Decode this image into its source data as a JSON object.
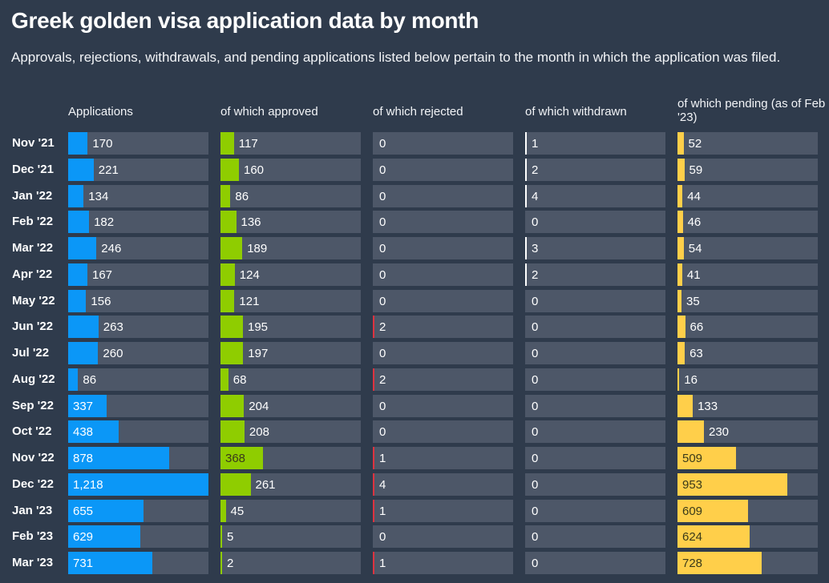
{
  "title": "Greek golden visa application data by month",
  "subtitle": "Approvals, rejections, withdrawals, and pending applications listed below pertain to the month in which the application was filed.",
  "chart_data": {
    "type": "bar",
    "orientation": "horizontal",
    "categories": [
      "Nov '21",
      "Dec '21",
      "Jan '22",
      "Feb '22",
      "Mar '22",
      "Apr '22",
      "May '22",
      "Jun '22",
      "Jul '22",
      "Aug '22",
      "Sep '22",
      "Oct '22",
      "Nov '22",
      "Dec '22",
      "Jan '23",
      "Feb '23",
      "Mar '23"
    ],
    "series": [
      {
        "name": "Applications",
        "color": "#0b97f7",
        "max": 1218,
        "values": [
          170,
          221,
          134,
          182,
          246,
          167,
          156,
          263,
          260,
          86,
          337,
          438,
          878,
          1218,
          655,
          629,
          731
        ]
      },
      {
        "name": "of which approved",
        "color": "#8fcd00",
        "max": 1218,
        "values": [
          117,
          160,
          86,
          136,
          189,
          124,
          121,
          195,
          197,
          68,
          204,
          208,
          368,
          261,
          45,
          5,
          2
        ]
      },
      {
        "name": "of which rejected",
        "color": "#dd3340",
        "max": 1218,
        "values": [
          0,
          0,
          0,
          0,
          0,
          0,
          0,
          2,
          0,
          2,
          0,
          0,
          1,
          4,
          1,
          0,
          1
        ]
      },
      {
        "name": "of which withdrawn",
        "color": "#ffffff",
        "max": 1218,
        "values": [
          1,
          2,
          4,
          0,
          3,
          2,
          0,
          0,
          0,
          0,
          0,
          0,
          0,
          0,
          0,
          0,
          0
        ]
      },
      {
        "name": "of which pending (as of Feb '23)",
        "color": "#ffcf4a",
        "max": 1218,
        "values": [
          52,
          59,
          44,
          46,
          54,
          41,
          35,
          66,
          63,
          16,
          133,
          230,
          509,
          953,
          609,
          624,
          728
        ]
      }
    ]
  }
}
